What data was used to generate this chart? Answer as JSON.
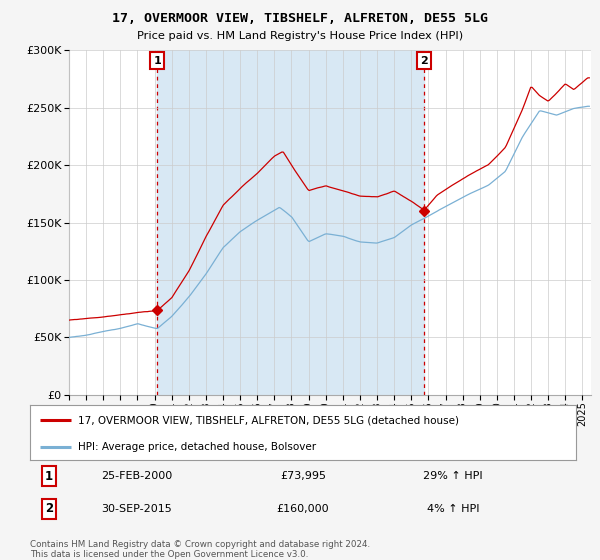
{
  "title": "17, OVERMOOR VIEW, TIBSHELF, ALFRETON, DE55 5LG",
  "subtitle": "Price paid vs. HM Land Registry's House Price Index (HPI)",
  "property_label": "17, OVERMOOR VIEW, TIBSHELF, ALFRETON, DE55 5LG (detached house)",
  "hpi_label": "HPI: Average price, detached house, Bolsover",
  "annotation1_date": "25-FEB-2000",
  "annotation1_price": "£73,995",
  "annotation1_hpi": "29% ↑ HPI",
  "annotation1_year": 2000.15,
  "annotation1_value": 73995,
  "annotation2_date": "30-SEP-2015",
  "annotation2_price": "£160,000",
  "annotation2_hpi": "4% ↑ HPI",
  "annotation2_year": 2015.75,
  "annotation2_value": 160000,
  "footer": "Contains HM Land Registry data © Crown copyright and database right 2024.\nThis data is licensed under the Open Government Licence v3.0.",
  "line_color_property": "#cc0000",
  "line_color_hpi": "#7ab0d4",
  "shade_color": "#d8e8f4",
  "ylim": [
    0,
    300000
  ],
  "yticks": [
    0,
    50000,
    100000,
    150000,
    200000,
    250000,
    300000
  ],
  "ytick_labels": [
    "£0",
    "£50K",
    "£100K",
    "£150K",
    "£200K",
    "£250K",
    "£300K"
  ],
  "bg_color": "#f5f5f5",
  "plot_bg_color": "#ffffff",
  "xmin": 1995,
  "xmax": 2025.5
}
